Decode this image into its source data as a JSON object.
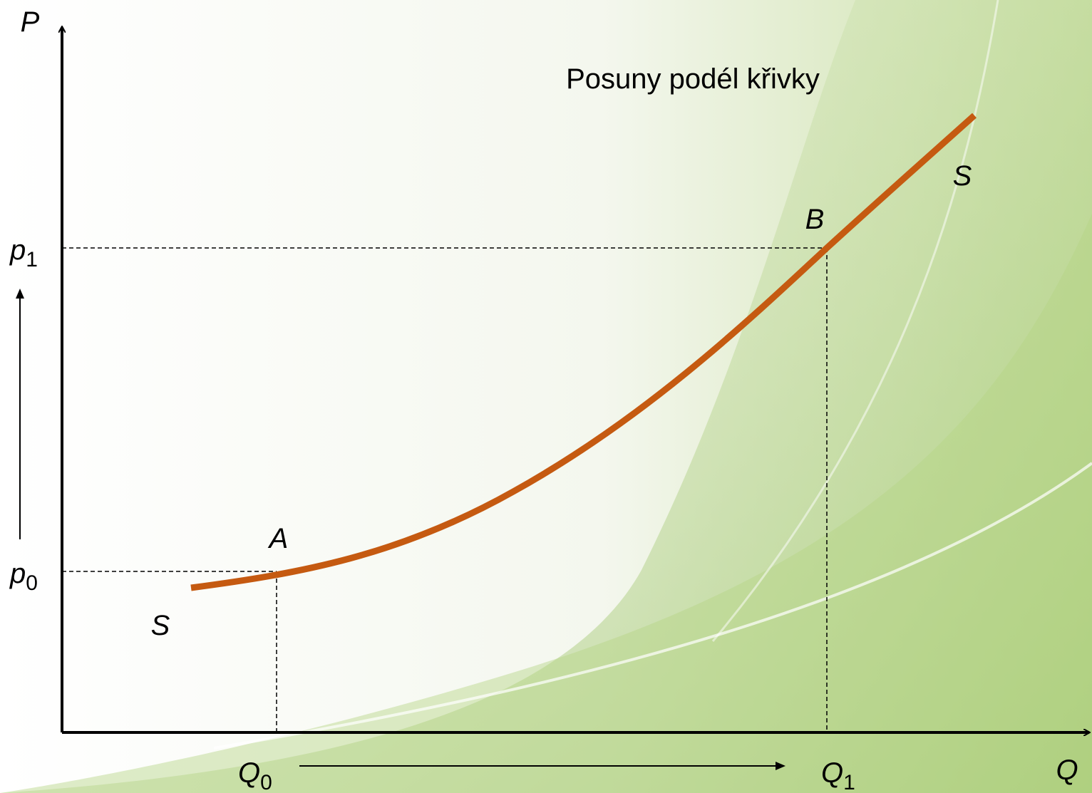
{
  "title": "Posuny podél křivky",
  "axes": {
    "y_label": "P",
    "x_label": "Q"
  },
  "curve": {
    "label_top": "S",
    "label_bottom": "S"
  },
  "points": [
    {
      "label": "A"
    },
    {
      "label": "B"
    }
  ],
  "price_labels": [
    {
      "base": "p",
      "sub": "0"
    },
    {
      "base": "p",
      "sub": "1"
    }
  ],
  "quantity_labels": [
    {
      "base": "Q",
      "sub": "0"
    },
    {
      "base": "Q",
      "sub": "1"
    }
  ]
}
